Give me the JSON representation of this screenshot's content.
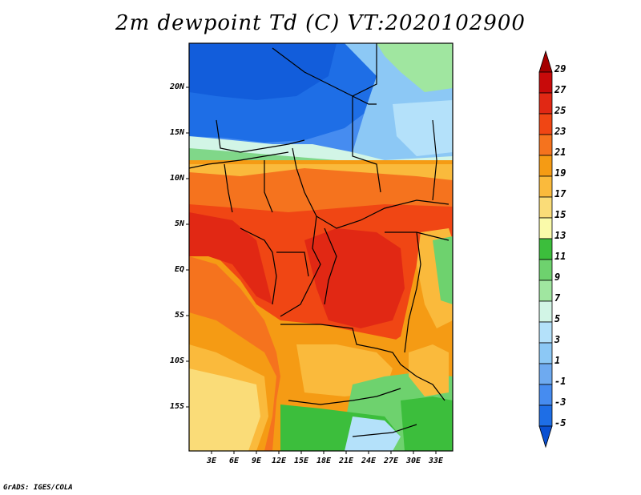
{
  "title": "2m dewpoint Td (C) VT:2020102900",
  "credit": "GrADS: IGES/COLA",
  "latitude_labels": [
    "20N",
    "15N",
    "10N",
    "5N",
    "EQ",
    "5S",
    "10S",
    "15S"
  ],
  "longitude_labels": [
    "3E",
    "6E",
    "9E",
    "12E",
    "15E",
    "18E",
    "21E",
    "24E",
    "27E",
    "30E",
    "33E"
  ],
  "colorbar": {
    "labels": [
      "29",
      "27",
      "25",
      "23",
      "21",
      "19",
      "17",
      "15",
      "13",
      "11",
      "9",
      "7",
      "5",
      "3",
      "1",
      "-1",
      "-3",
      "-5"
    ],
    "colors": [
      "#a50000",
      "#c80a0a",
      "#e12814",
      "#f04614",
      "#f5731e",
      "#f59b14",
      "#faba3c",
      "#fadc78",
      "#fafaaa",
      "#3cbe3c",
      "#6ed26e",
      "#a0e6a0",
      "#d2f5e6",
      "#b4e1fa",
      "#8cc8f5",
      "#6eaaf0",
      "#468cf0",
      "#1e6ee6",
      "#0a50d2"
    ],
    "top_triangle_color": "#a50000",
    "bottom_triangle_color": "#0a50d2"
  }
}
